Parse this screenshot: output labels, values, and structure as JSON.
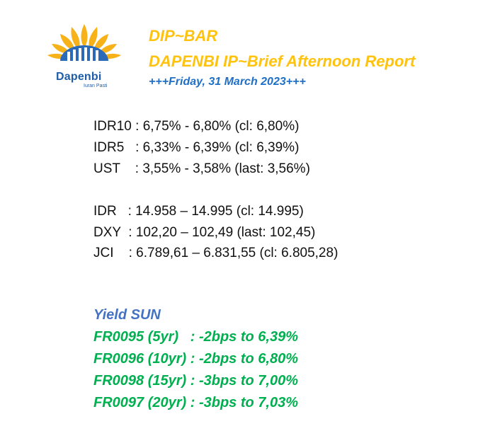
{
  "logo": {
    "name": "Dapenbi",
    "tagline": "Iuran Pasti"
  },
  "header": {
    "title": "DIP~BAR",
    "subtitle": "DAPENBI IP~Brief Afternoon Report",
    "date": "+++Friday, 31 March 2023+++"
  },
  "rates": [
    {
      "label": "IDR10 ",
      "text": ": 6,75% - 6,80% (cl: 6,80%)"
    },
    {
      "label": "IDR5   ",
      "text": ": 6,33% - 6,39% (cl: 6,39%)"
    },
    {
      "label": "UST    ",
      "text": ": 3,55% - 3,58% (last: 3,56%)"
    }
  ],
  "markets": [
    {
      "label": "IDR   ",
      "text": ": 14.958 – 14.995 (cl: 14.995)"
    },
    {
      "label": "DXY  ",
      "text": ": 102,20 – 102,49 (last: 102,45)"
    },
    {
      "label": "JCI    ",
      "text": ": 6.789,61 – 6.831,55 (cl: 6.805,28)"
    }
  ],
  "yield": {
    "title": "Yield SUN",
    "items": [
      {
        "label": "FR0095 (5yr)   ",
        "text": ": -2bps to 6,39%"
      },
      {
        "label": "FR0096 (10yr) ",
        "text": ": -2bps to 6,80%"
      },
      {
        "label": "FR0098 (15yr) ",
        "text": ": -3bps to 7,00%"
      },
      {
        "label": "FR0097 (20yr) ",
        "text": ": -3bps to 7,03%"
      }
    ]
  },
  "colors": {
    "brand_yellow": "#ffc20e",
    "brand_blue": "#1f6fc6",
    "yield_title": "#4472c4",
    "yield_green": "#00b050"
  }
}
